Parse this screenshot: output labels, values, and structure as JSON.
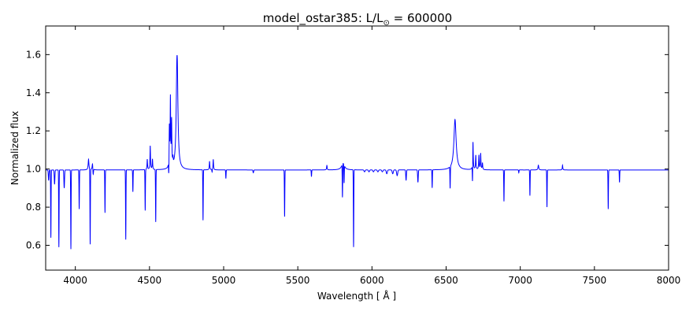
{
  "chart_data": {
    "type": "line",
    "title_main": "model_ostar385: L/L",
    "title_sub": "⊙",
    "title_value": " = 600000",
    "xlabel": "Wavelength [ Å ]",
    "ylabel": "Normalized flux",
    "xlim": [
      3800,
      8000
    ],
    "ylim": [
      0.47,
      1.75
    ],
    "xticks": [
      4000,
      4500,
      5000,
      5500,
      6000,
      6500,
      7000,
      7500,
      8000
    ],
    "yticks": [
      0.6,
      0.8,
      1.0,
      1.2,
      1.4,
      1.6
    ],
    "xtick_labels": [
      "4000",
      "4500",
      "5000",
      "5500",
      "6000",
      "6500",
      "7000",
      "7500",
      "8000"
    ],
    "ytick_labels": [
      "0.6",
      "0.8",
      "1.0",
      "1.2",
      "1.4",
      "1.6"
    ],
    "grid": false,
    "line_color": "#0000ff",
    "series": [
      {
        "continuum": 0.995,
        "absorption_lines": [
          [
            3820,
            0.94,
            3
          ],
          [
            3835,
            0.64,
            2
          ],
          [
            3860,
            0.92,
            3
          ],
          [
            3889,
            0.59,
            2
          ],
          [
            3925,
            0.9,
            3
          ],
          [
            3970,
            0.58,
            2
          ],
          [
            4026,
            0.79,
            2
          ],
          [
            4100,
            0.6,
            2
          ],
          [
            4120,
            0.96,
            3
          ],
          [
            4200,
            0.77,
            2
          ],
          [
            4340,
            0.63,
            2
          ],
          [
            4388,
            0.88,
            2
          ],
          [
            4471,
            0.78,
            2
          ],
          [
            4542,
            0.72,
            2
          ],
          [
            4630,
            0.92,
            2
          ],
          [
            4686,
            0.95,
            2
          ],
          [
            4861,
            0.73,
            2
          ],
          [
            4922,
            0.98,
            2
          ],
          [
            5015,
            0.95,
            2
          ],
          [
            5200,
            0.98,
            3
          ],
          [
            5411,
            0.75,
            2
          ],
          [
            5592,
            0.96,
            2
          ],
          [
            5801,
            0.82,
            2
          ],
          [
            5812,
            0.9,
            2
          ],
          [
            5876,
            0.59,
            2
          ],
          [
            5950,
            0.985,
            5
          ],
          [
            5980,
            0.985,
            5
          ],
          [
            6010,
            0.985,
            5
          ],
          [
            6040,
            0.985,
            5
          ],
          [
            6070,
            0.985,
            5
          ],
          [
            6100,
            0.975,
            5
          ],
          [
            6140,
            0.975,
            5
          ],
          [
            6170,
            0.965,
            5
          ],
          [
            6230,
            0.94,
            3
          ],
          [
            6310,
            0.93,
            3
          ],
          [
            6406,
            0.9,
            2
          ],
          [
            6527,
            0.88,
            2
          ],
          [
            6678,
            0.89,
            2
          ],
          [
            6890,
            0.83,
            2
          ],
          [
            6990,
            0.98,
            2
          ],
          [
            7065,
            0.86,
            2
          ],
          [
            7180,
            0.8,
            2
          ],
          [
            7593,
            0.79,
            2
          ],
          [
            7669,
            0.93,
            2
          ]
        ],
        "emission_lines": [
          [
            4089,
            1.05,
            3
          ],
          [
            4116,
            1.03,
            3
          ],
          [
            4485,
            1.05,
            2
          ],
          [
            4505,
            1.12,
            2
          ],
          [
            4520,
            1.05,
            2
          ],
          [
            4634,
            1.2,
            2
          ],
          [
            4641,
            1.35,
            2
          ],
          [
            4649,
            1.23,
            2
          ],
          [
            4658,
            1.03,
            2
          ],
          [
            4686,
            1.64,
            6
          ],
          [
            4905,
            1.04,
            2
          ],
          [
            4930,
            1.05,
            2
          ],
          [
            5696,
            1.02,
            2
          ],
          [
            5805,
            1.03,
            12
          ],
          [
            6560,
            1.26,
            9
          ],
          [
            6681,
            1.15,
            2
          ],
          [
            6700,
            1.07,
            2
          ],
          [
            6721,
            1.07,
            2
          ],
          [
            6733,
            1.08,
            2
          ],
          [
            6745,
            1.03,
            2
          ],
          [
            7122,
            1.02,
            3
          ],
          [
            7285,
            1.02,
            2
          ]
        ]
      }
    ]
  }
}
